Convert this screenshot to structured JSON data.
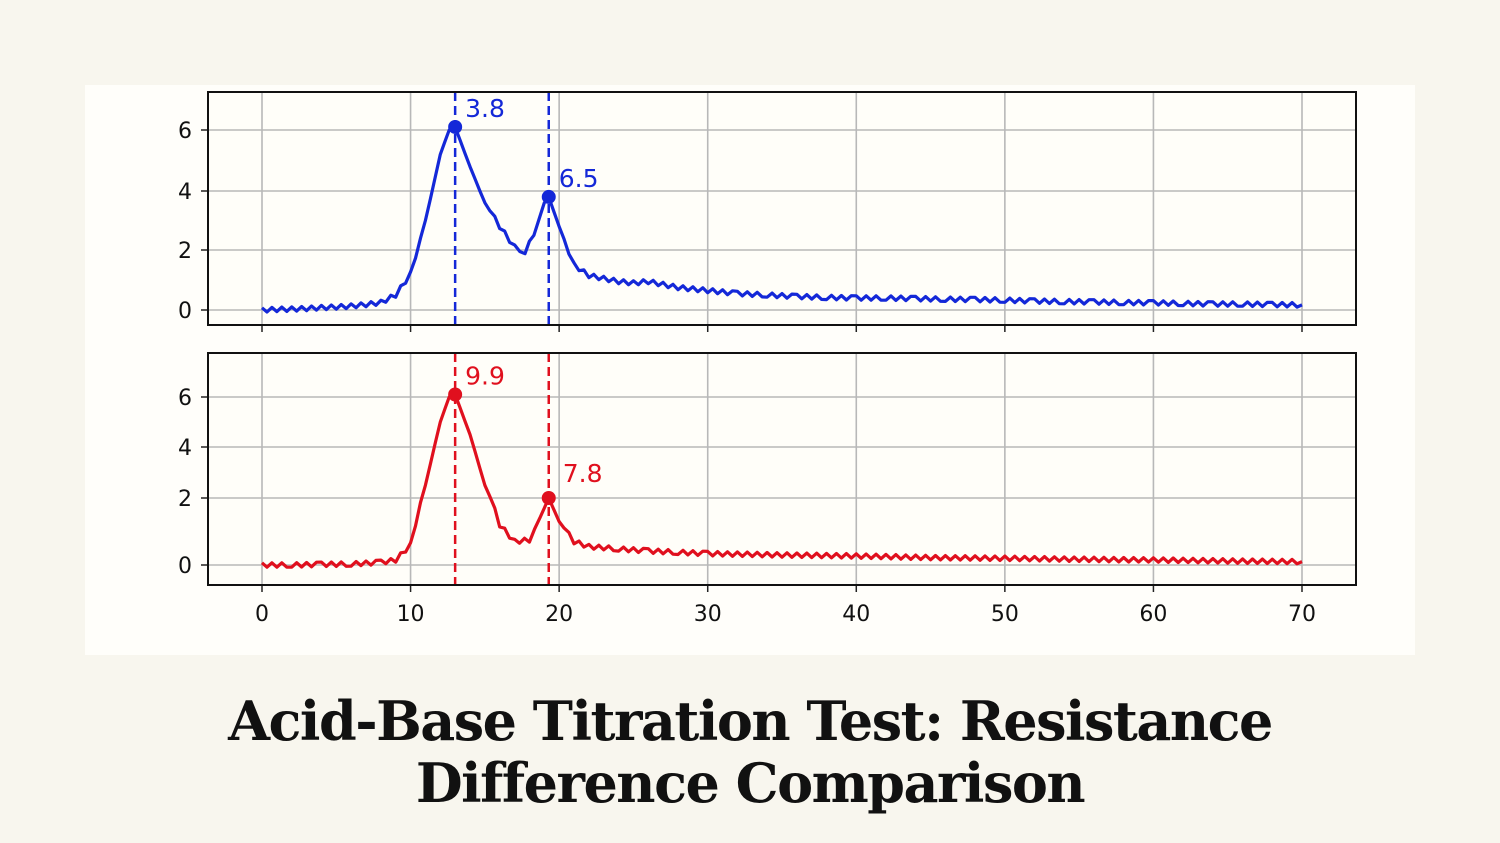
{
  "title": "Acid-Base Titration Test: Resistance Difference Comparison",
  "chart_data": [
    {
      "type": "line",
      "color": "#1428d8",
      "xlim": [
        0,
        70
      ],
      "ylim": [
        -0.3,
        7.2
      ],
      "x_ticks": [
        "0",
        "10",
        "20",
        "30",
        "40",
        "50",
        "60",
        "70"
      ],
      "y_ticks": [
        "0",
        "2",
        "4",
        "6"
      ],
      "grid": true,
      "x": [
        0,
        1,
        2,
        3,
        4,
        5,
        6,
        7,
        8,
        9,
        10,
        11,
        12,
        12.6,
        13,
        14,
        15,
        16,
        17,
        17.7,
        18.3,
        19,
        19.3,
        20,
        21,
        22,
        23,
        24,
        25,
        26,
        27,
        28,
        29,
        30,
        32,
        34,
        36,
        38,
        40,
        42,
        44,
        46,
        48,
        50,
        52,
        54,
        56,
        58,
        60,
        62,
        64,
        66,
        68,
        70
      ],
      "y": [
        0,
        0.02,
        0.03,
        0.05,
        0.08,
        0.1,
        0.13,
        0.18,
        0.25,
        0.5,
        1.2,
        3.0,
        5.2,
        6.0,
        6.1,
        4.8,
        3.6,
        2.8,
        2.1,
        1.95,
        2.5,
        3.6,
        3.8,
        2.8,
        1.5,
        1.15,
        1.05,
        0.95,
        0.9,
        0.95,
        0.85,
        0.75,
        0.7,
        0.65,
        0.55,
        0.5,
        0.45,
        0.42,
        0.4,
        0.4,
        0.38,
        0.36,
        0.35,
        0.33,
        0.3,
        0.28,
        0.27,
        0.25,
        0.24,
        0.22,
        0.2,
        0.2,
        0.18,
        0.17
      ],
      "peaks": [
        {
          "x": 13.0,
          "y": 6.1,
          "label": "3.8"
        },
        {
          "x": 19.3,
          "y": 3.8,
          "label": "6.5"
        }
      ]
    },
    {
      "type": "line",
      "color": "#e0101e",
      "xlim": [
        0,
        70
      ],
      "ylim": [
        -0.6,
        7.5
      ],
      "x_ticks": [
        "0",
        "10",
        "20",
        "30",
        "40",
        "50",
        "60",
        "70"
      ],
      "y_ticks": [
        "0",
        "2",
        "4",
        "6"
      ],
      "grid": true,
      "x": [
        0,
        2,
        4,
        6,
        8,
        9,
        10,
        11,
        12,
        12.6,
        13,
        14,
        15,
        16,
        17,
        18,
        18.7,
        19.3,
        20,
        21,
        22,
        24,
        26,
        28,
        30,
        35,
        40,
        45,
        50,
        55,
        60,
        65,
        70
      ],
      "y": [
        0,
        0,
        0.02,
        0.03,
        0.08,
        0.15,
        0.6,
        2.5,
        5.0,
        6.0,
        6.1,
        4.5,
        2.5,
        1.2,
        0.7,
        0.75,
        1.4,
        2.0,
        1.3,
        0.7,
        0.55,
        0.48,
        0.42,
        0.38,
        0.34,
        0.3,
        0.27,
        0.22,
        0.2,
        0.17,
        0.15,
        0.12,
        0.1
      ],
      "peaks": [
        {
          "x": 13.0,
          "y": 6.1,
          "label": "9.9"
        },
        {
          "x": 19.3,
          "y": 2.0,
          "label": "7.8"
        }
      ]
    }
  ]
}
